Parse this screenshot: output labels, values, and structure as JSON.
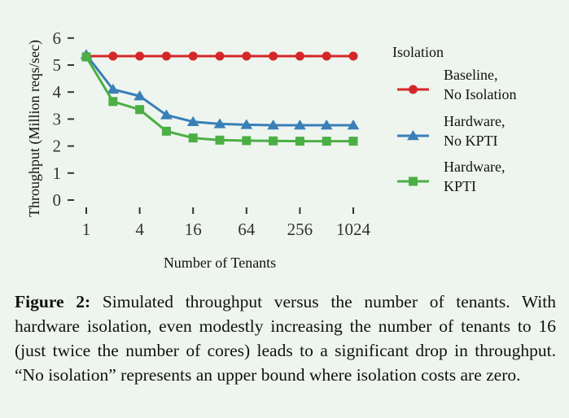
{
  "chart_data": {
    "type": "line",
    "xlabel": "Number of Tenants",
    "ylabel": "Throughput (Million reqs/sec)",
    "x_scale": "log2",
    "x": [
      1,
      2,
      4,
      8,
      16,
      32,
      64,
      128,
      256,
      512,
      1024
    ],
    "x_tick_labels": [
      "1",
      "4",
      "16",
      "64",
      "256",
      "1024"
    ],
    "x_tick_values": [
      1,
      4,
      16,
      64,
      256,
      1024
    ],
    "y_ticks": [
      0,
      1,
      2,
      3,
      4,
      5,
      6
    ],
    "ylim": [
      0,
      6.3
    ],
    "grid": false,
    "legend_title": "Isolation",
    "legend_position": "right",
    "series": [
      {
        "name": "Baseline,\nNo Isolation",
        "legend_lines": [
          "Baseline,",
          "No Isolation"
        ],
        "marker": "circle",
        "color": "#d62728",
        "values": [
          5.33,
          5.33,
          5.33,
          5.33,
          5.33,
          5.33,
          5.33,
          5.33,
          5.33,
          5.33,
          5.33
        ]
      },
      {
        "name": "Hardware,\nNo KPTI",
        "legend_lines": [
          "Hardware,",
          "No KPTI"
        ],
        "marker": "triangle",
        "color": "#3a7fb8",
        "values": [
          5.38,
          4.1,
          3.85,
          3.15,
          2.9,
          2.82,
          2.79,
          2.77,
          2.77,
          2.77,
          2.77
        ]
      },
      {
        "name": "Hardware,\nKPTI",
        "legend_lines": [
          "Hardware,",
          "KPTI"
        ],
        "marker": "square",
        "color": "#4caf45",
        "values": [
          5.3,
          3.65,
          3.35,
          2.55,
          2.3,
          2.22,
          2.2,
          2.19,
          2.18,
          2.18,
          2.18
        ]
      }
    ]
  },
  "caption": {
    "label": "Figure 2:",
    "text": " Simulated throughput versus the number of tenants. With hardware isolation, even modestly increasing the number of tenants to 16 (just twice the number of cores) leads to a significant drop in throughput. “No isolation” represents an upper bound where isolation costs are zero."
  }
}
